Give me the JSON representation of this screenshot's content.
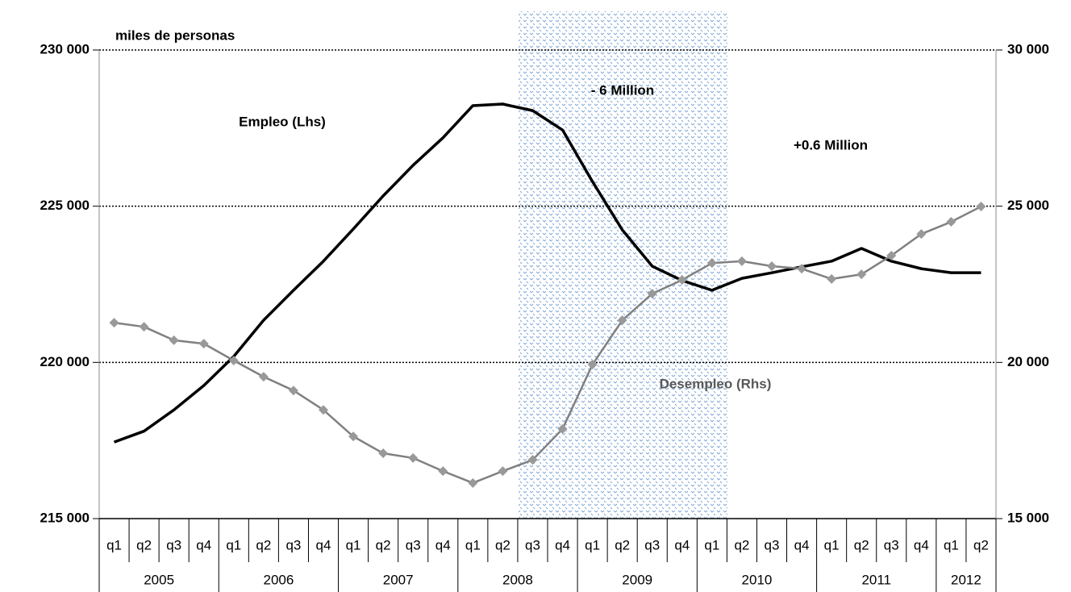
{
  "chart_data": {
    "type": "line",
    "unit_label": "miles de personas",
    "categories": [
      "q1",
      "q2",
      "q3",
      "q4",
      "q1",
      "q2",
      "q3",
      "q4",
      "q1",
      "q2",
      "q3",
      "q4",
      "q1",
      "q2",
      "q3",
      "q4",
      "q1",
      "q2",
      "q3",
      "q4",
      "q1",
      "q2",
      "q3",
      "q4",
      "q1",
      "q2",
      "q3",
      "q4",
      "q1",
      "q2"
    ],
    "year_groups": [
      "2005",
      "2006",
      "2007",
      "2008",
      "2009",
      "2010",
      "2011",
      "2012"
    ],
    "series": [
      {
        "name": "Empleo (Lhs)",
        "color": "#000000",
        "axis": "y",
        "values": [
          217450,
          217800,
          218480,
          219260,
          220190,
          221350,
          222310,
          223240,
          224270,
          225330,
          226310,
          227190,
          228220,
          228270,
          228060,
          227440,
          225790,
          224240,
          223080,
          222620,
          222310,
          222690,
          222870,
          223060,
          223240,
          223650,
          223240,
          223000,
          222870,
          222870
        ]
      },
      {
        "name": "Desempleo (Rhs)",
        "color": "#808080",
        "marker_color": "#999999",
        "axis": "y2",
        "values": [
          21270,
          21140,
          20710,
          20600,
          20060,
          19540,
          19100,
          18480,
          17630,
          17090,
          16940,
          16520,
          16140,
          16520,
          16880,
          17870,
          19930,
          21350,
          22200,
          22640,
          23180,
          23240,
          23080,
          23000,
          22670,
          22820,
          23420,
          24110,
          24500,
          24990
        ]
      }
    ],
    "annotations": [
      "- 6 Million",
      "+0.6 Million"
    ],
    "ylim": [
      215000,
      230000
    ],
    "yticks": [
      {
        "value": 215000,
        "label": "215 000"
      },
      {
        "value": 220000,
        "label": "220 000"
      },
      {
        "value": 225000,
        "label": "225 000"
      },
      {
        "value": 230000,
        "label": "230 000"
      }
    ],
    "y2lim": [
      15000,
      30000
    ],
    "y2ticks": [
      {
        "value": 15000,
        "label": "15 000"
      },
      {
        "value": 20000,
        "label": "20 000"
      },
      {
        "value": 25000,
        "label": "25 000"
      },
      {
        "value": 30000,
        "label": "30 000"
      }
    ],
    "grid": true
  }
}
